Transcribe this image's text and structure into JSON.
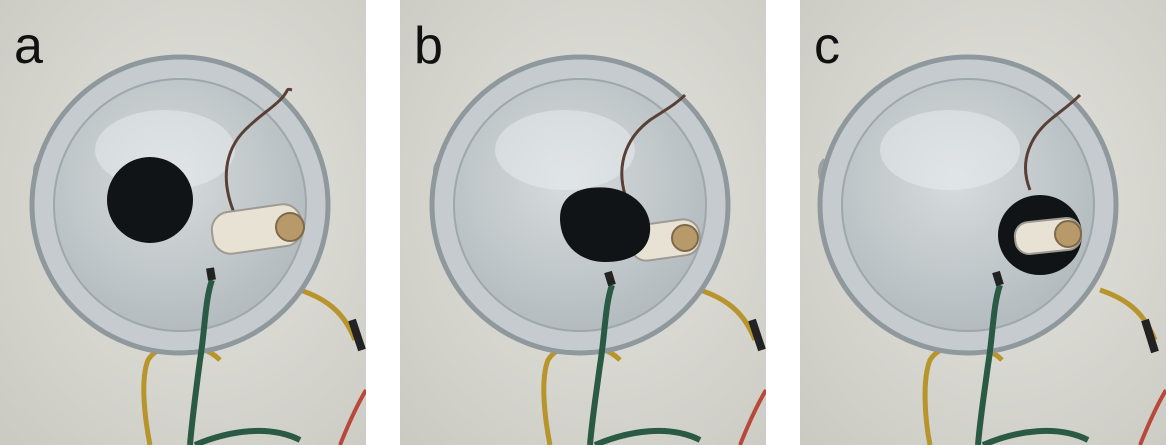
{
  "panels": [
    {
      "label": "a",
      "stage": "flat-disk"
    },
    {
      "label": "b",
      "stage": "partially-wrapped"
    },
    {
      "label": "c",
      "stage": "wrapped-around-cylinder"
    }
  ],
  "colors": {
    "background": "#dadad4",
    "beaker_glass": "#b8bfc2",
    "disk": "#111416",
    "green_wire": "#2a5a44",
    "yellow_wire": "#b8942c",
    "red_wire": "#b8493a",
    "copper_lead": "#5a3f35",
    "stopper": "#e8e2d5",
    "electrode_tip": "#b89a6a"
  }
}
